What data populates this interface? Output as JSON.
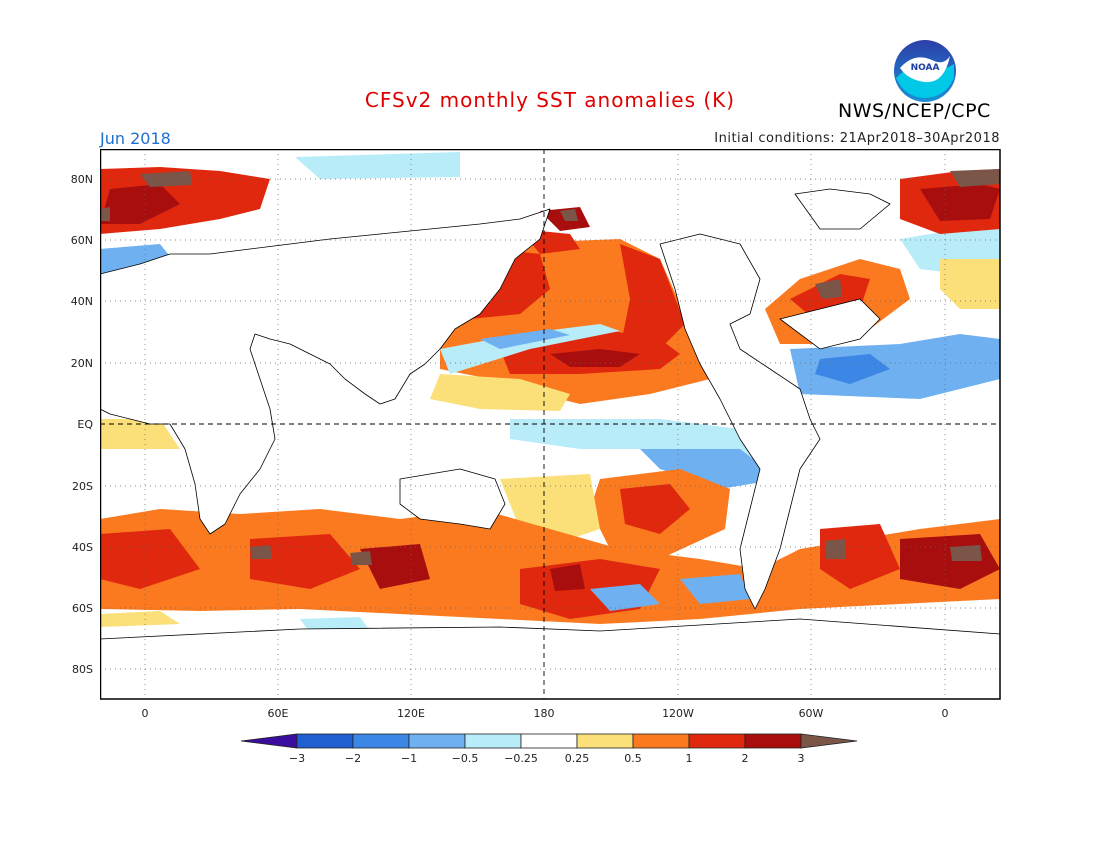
{
  "title": "CFSv2 monthly SST anomalies (K)",
  "agency": "NWS/NCEP/CPC",
  "logo_text": "NOAA",
  "month_label": "Jun 2018",
  "initial_conditions": "Initial conditions: 21Apr2018–30Apr2018",
  "lat_ticks": [
    "80N",
    "60N",
    "40N",
    "20N",
    "EQ",
    "20S",
    "40S",
    "60S",
    "80S"
  ],
  "lon_ticks": [
    "0",
    "60E",
    "120E",
    "180",
    "120W",
    "60W",
    "0"
  ],
  "colorbar": {
    "tick_labels": [
      "−3",
      "−2",
      "−1",
      "−0.5",
      "−0.25",
      "0.25",
      "0.5",
      "1",
      "2",
      "3"
    ],
    "colors": [
      "#3a0d9e",
      "#1f5fcf",
      "#3c87e6",
      "#6fb0f0",
      "#b8ecf8",
      "#ffffff",
      "#fbe07a",
      "#fb7a1f",
      "#e0280e",
      "#a90e0e",
      "#7a5548"
    ]
  },
  "map_colors": {
    "neg_weak": "#b8ecf8",
    "neg_mid": "#6fb0f0",
    "neg_strong": "#3c87e6",
    "pos_weak": "#fbe07a",
    "pos_mid": "#fb7a1f",
    "pos_strong": "#e0280e",
    "pos_vstrong": "#a90e0e",
    "extreme": "#7a5548"
  }
}
